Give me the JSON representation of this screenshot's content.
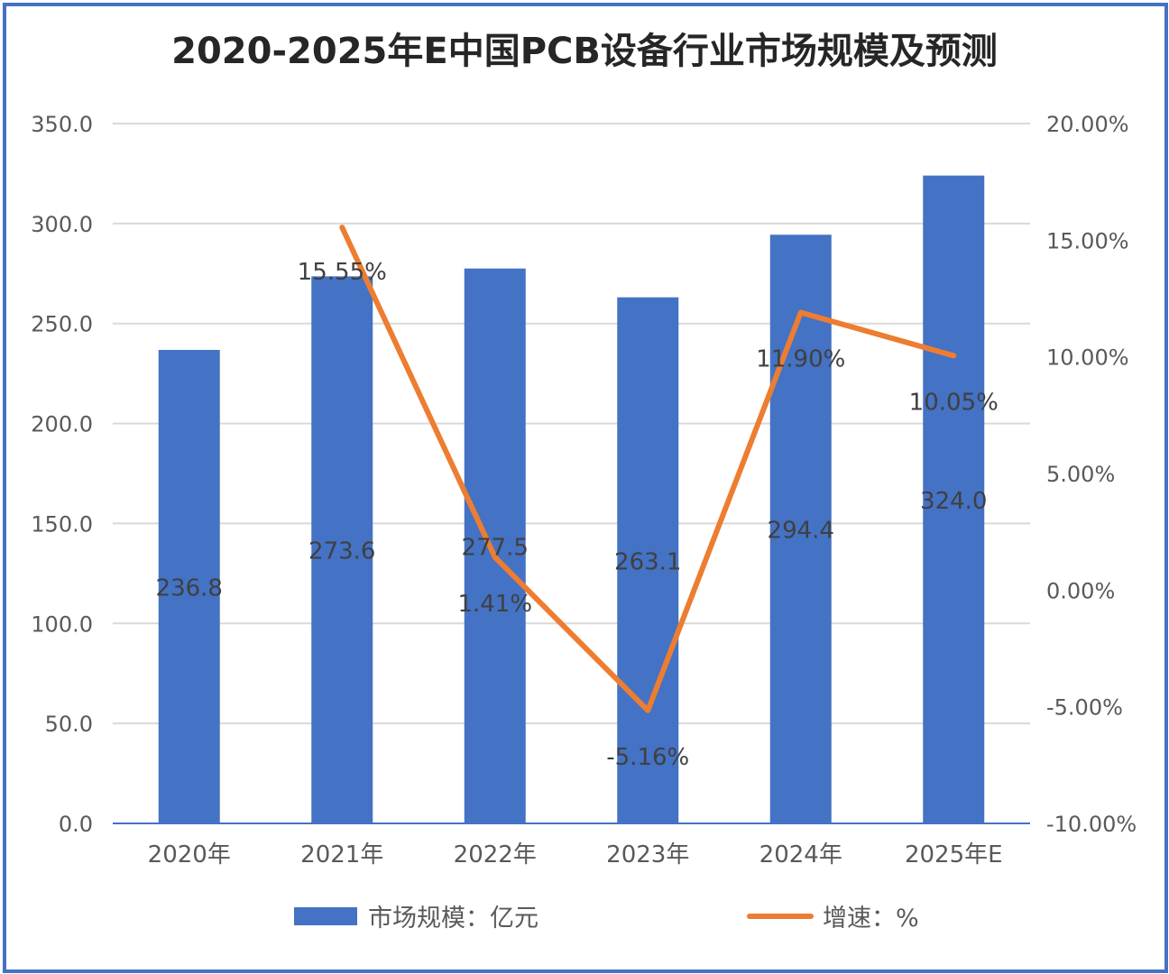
{
  "chart_data": {
    "type": "bar+line",
    "title": "2020-2025年E中国PCB设备行业市场规模及预测",
    "categories": [
      "2020年",
      "2021年",
      "2022年",
      "2023年",
      "2024年",
      "2025年E"
    ],
    "series": [
      {
        "name": "市场规模：亿元",
        "type": "bar",
        "axis": "left",
        "color": "#4472C4",
        "values": [
          236.8,
          273.6,
          277.5,
          263.1,
          294.4,
          324.0
        ],
        "labels": [
          "236.8",
          "273.6",
          "277.5",
          "263.1",
          "294.4",
          "324.0"
        ]
      },
      {
        "name": "增速：%",
        "type": "line",
        "axis": "right",
        "color": "#ED7D31",
        "values": [
          null,
          15.55,
          1.41,
          -5.16,
          11.9,
          10.05
        ],
        "labels": [
          "",
          "15.55%",
          "1.41%",
          "-5.16%",
          "11.90%",
          "10.05%"
        ]
      }
    ],
    "left_axis": {
      "ylim": [
        0,
        350
      ],
      "ticks": [
        "0.0",
        "50.0",
        "100.0",
        "150.0",
        "200.0",
        "250.0",
        "300.0",
        "350.0"
      ]
    },
    "right_axis": {
      "ylim": [
        -10,
        20
      ],
      "ticks": [
        "-10.00%",
        "-5.00%",
        "0.00%",
        "5.00%",
        "10.00%",
        "15.00%",
        "20.00%"
      ]
    },
    "grid": true,
    "legend_position": "bottom"
  }
}
